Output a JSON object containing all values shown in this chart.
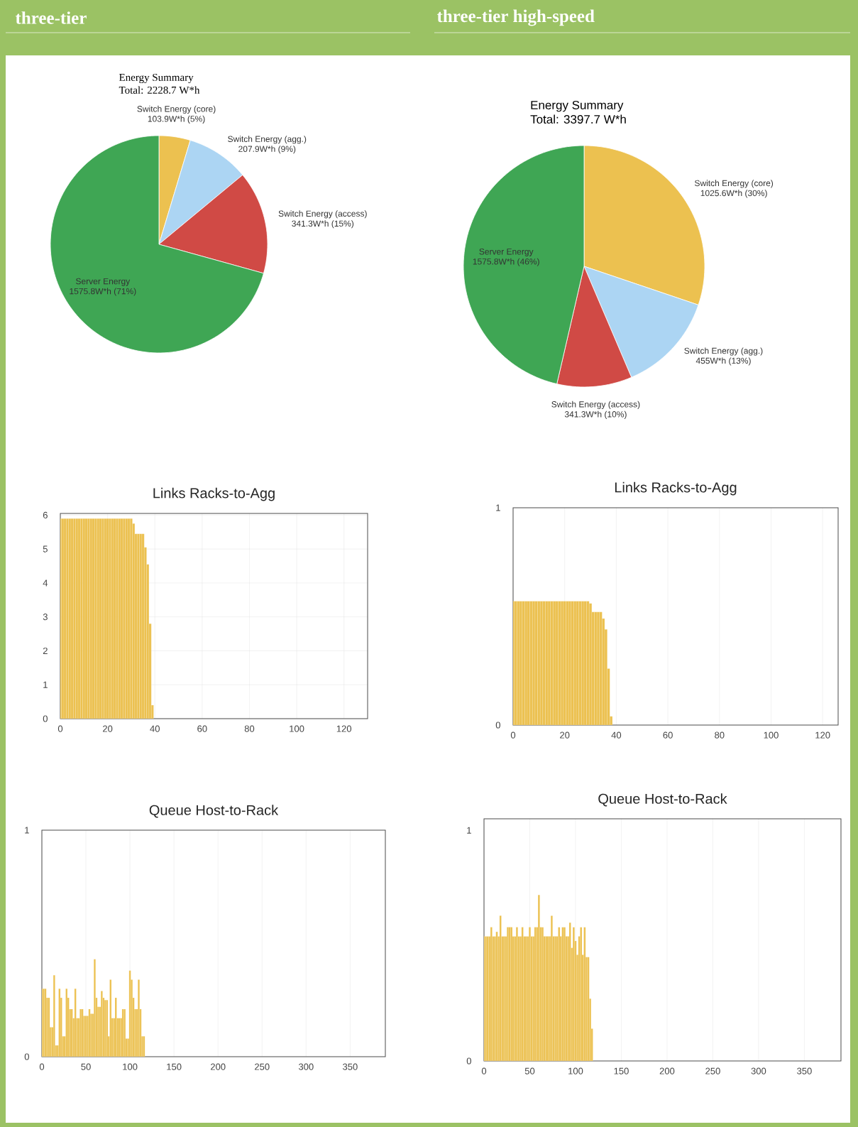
{
  "chart_data": [
    {
      "type": "pie",
      "title": "Energy Summary",
      "subtitle": "Total: 2228.7 W*h",
      "annotations": [
        "three-tier"
      ],
      "categories": [
        "Switch Energy (core)",
        "Switch Energy (agg.)",
        "Switch Energy (access)",
        "Server Energy"
      ],
      "values": [
        103.9,
        207.9,
        341.3,
        1575.8
      ],
      "value_labels": [
        "103.9W*h (5%)",
        "207.9W*h (9%)",
        "341.3W*h (15%)",
        "1575.8W*h (71%)"
      ],
      "colors": [
        "#ecc150",
        "#acd5f3",
        "#d04a45",
        "#3fa654"
      ]
    },
    {
      "type": "pie",
      "title": "Energy Summary",
      "subtitle": "Total: 3397.7 W*h",
      "annotations": [
        "three-tier high-speed"
      ],
      "categories": [
        "Switch Energy (core)",
        "Switch Energy (agg.)",
        "Switch Energy (access)",
        "Server Energy"
      ],
      "values": [
        1025.6,
        455,
        341.3,
        1575.8
      ],
      "value_labels": [
        "1025.6W*h (30%)",
        "455W*h (13%)",
        "341.3W*h (10%)",
        "1575.8W*h (46%)"
      ],
      "colors": [
        "#ecc150",
        "#acd5f3",
        "#d04a45",
        "#3fa654"
      ]
    },
    {
      "type": "bar",
      "title": "Links Racks-to-Agg",
      "color": "#ecc150",
      "grid": true,
      "xlim": [
        0,
        130
      ],
      "xticks": [
        0,
        20,
        40,
        60,
        80,
        100,
        120
      ],
      "ylim": [
        0,
        6.05
      ],
      "yticks": [
        0,
        1,
        2,
        3,
        4,
        5,
        6
      ],
      "x": [
        0,
        1,
        2,
        3,
        4,
        5,
        6,
        7,
        8,
        9,
        10,
        11,
        12,
        13,
        14,
        15,
        16,
        17,
        18,
        19,
        20,
        21,
        22,
        23,
        24,
        25,
        26,
        27,
        28,
        29,
        30,
        31,
        32,
        33,
        34,
        35,
        36,
        37,
        38,
        39
      ],
      "values": [
        5.9,
        5.9,
        5.9,
        5.9,
        5.9,
        5.9,
        5.9,
        5.9,
        5.9,
        5.9,
        5.9,
        5.9,
        5.9,
        5.9,
        5.9,
        5.9,
        5.9,
        5.9,
        5.9,
        5.9,
        5.9,
        5.9,
        5.9,
        5.9,
        5.9,
        5.9,
        5.9,
        5.9,
        5.9,
        5.9,
        5.9,
        5.75,
        5.45,
        5.45,
        5.45,
        5.45,
        5.05,
        4.55,
        2.8,
        0.4
      ]
    },
    {
      "type": "bar",
      "title": "Links Racks-to-Agg",
      "color": "#ecc150",
      "grid": "x",
      "xlim": [
        0,
        126
      ],
      "xticks": [
        0,
        20,
        40,
        60,
        80,
        100,
        120
      ],
      "ylim": [
        0,
        1
      ],
      "yticks": [
        0,
        1
      ],
      "x": [
        0,
        1,
        2,
        3,
        4,
        5,
        6,
        7,
        8,
        9,
        10,
        11,
        12,
        13,
        14,
        15,
        16,
        17,
        18,
        19,
        20,
        21,
        22,
        23,
        24,
        25,
        26,
        27,
        28,
        29,
        30,
        31,
        32,
        33,
        34,
        35,
        36,
        37,
        38
      ],
      "values": [
        0.57,
        0.57,
        0.57,
        0.57,
        0.57,
        0.57,
        0.57,
        0.57,
        0.57,
        0.57,
        0.57,
        0.57,
        0.57,
        0.57,
        0.57,
        0.57,
        0.57,
        0.57,
        0.57,
        0.57,
        0.57,
        0.57,
        0.57,
        0.57,
        0.57,
        0.57,
        0.57,
        0.57,
        0.57,
        0.57,
        0.56,
        0.52,
        0.52,
        0.52,
        0.52,
        0.49,
        0.44,
        0.26,
        0.04
      ]
    },
    {
      "type": "bar",
      "title": "Queue Host-to-Rack",
      "color": "#ecc150",
      "grid": "x",
      "xlim": [
        0,
        390
      ],
      "xticks": [
        0,
        50,
        100,
        150,
        200,
        250,
        300,
        350
      ],
      "ylim": [
        0,
        1
      ],
      "yticks": [
        0,
        1
      ],
      "x": [
        0,
        2,
        4,
        6,
        8,
        10,
        12,
        14,
        16,
        18,
        20,
        22,
        24,
        26,
        28,
        30,
        32,
        34,
        36,
        38,
        40,
        42,
        44,
        46,
        48,
        50,
        52,
        54,
        56,
        58,
        60,
        62,
        64,
        66,
        68,
        70,
        72,
        74,
        76,
        78,
        80,
        82,
        84,
        86,
        88,
        90,
        92,
        94,
        96,
        98,
        100,
        102,
        104,
        106,
        108,
        110,
        112,
        114,
        116
      ],
      "values": [
        0.3,
        0.3,
        0.3,
        0.26,
        0.26,
        0.13,
        0.13,
        0.36,
        0.05,
        0.05,
        0.3,
        0.26,
        0.09,
        0.09,
        0.3,
        0.26,
        0.21,
        0.21,
        0.17,
        0.3,
        0.17,
        0.17,
        0.21,
        0.21,
        0.18,
        0.18,
        0.18,
        0.21,
        0.19,
        0.19,
        0.43,
        0.26,
        0.22,
        0.22,
        0.29,
        0.26,
        0.25,
        0.25,
        0.09,
        0.34,
        0.17,
        0.17,
        0.26,
        0.17,
        0.17,
        0.17,
        0.21,
        0.21,
        0.08,
        0.08,
        0.38,
        0.34,
        0.26,
        0.21,
        0.21,
        0.34,
        0.21,
        0.09,
        0.09
      ]
    },
    {
      "type": "bar",
      "title": "Queue Host-to-Rack",
      "color": "#ecc150",
      "grid": "x",
      "xlim": [
        0,
        390
      ],
      "xticks": [
        0,
        50,
        100,
        150,
        200,
        250,
        300,
        350
      ],
      "ylim": [
        0,
        1.05
      ],
      "yticks": [
        0,
        1
      ],
      "x": [
        0,
        2,
        4,
        6,
        8,
        10,
        12,
        14,
        16,
        18,
        20,
        22,
        24,
        26,
        28,
        30,
        32,
        34,
        36,
        38,
        40,
        42,
        44,
        46,
        48,
        50,
        52,
        54,
        56,
        58,
        60,
        62,
        64,
        66,
        68,
        70,
        72,
        74,
        76,
        78,
        80,
        82,
        84,
        86,
        88,
        90,
        92,
        94,
        96,
        98,
        100,
        102,
        104,
        106,
        108,
        110,
        112,
        114,
        116,
        118
      ],
      "values": [
        0.54,
        0.54,
        0.54,
        0.54,
        0.58,
        0.54,
        0.54,
        0.56,
        0.54,
        0.63,
        0.54,
        0.54,
        0.54,
        0.58,
        0.58,
        0.58,
        0.54,
        0.54,
        0.58,
        0.54,
        0.54,
        0.58,
        0.54,
        0.54,
        0.54,
        0.58,
        0.54,
        0.54,
        0.58,
        0.58,
        0.72,
        0.58,
        0.58,
        0.54,
        0.54,
        0.54,
        0.54,
        0.63,
        0.54,
        0.54,
        0.54,
        0.58,
        0.54,
        0.58,
        0.58,
        0.54,
        0.54,
        0.6,
        0.49,
        0.58,
        0.52,
        0.46,
        0.54,
        0.58,
        0.46,
        0.58,
        0.45,
        0.45,
        0.27,
        0.14
      ]
    }
  ]
}
